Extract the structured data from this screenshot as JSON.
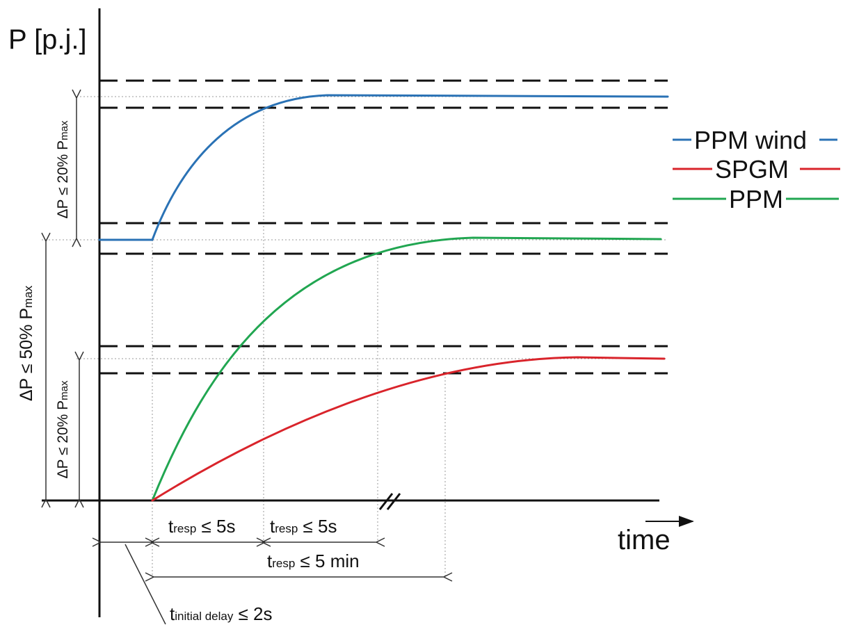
{
  "axes": {
    "y_label": "P [p.j.]",
    "x_label": "time"
  },
  "legend": [
    {
      "name": "PPM wind",
      "color": "#2a72b5"
    },
    {
      "name": "SPGM",
      "color": "#d9242b"
    },
    {
      "name": "PPM",
      "color": "#21a651"
    }
  ],
  "dimensions": {
    "wind_dp": {
      "prefix": "ΔP ≤ 20% P",
      "sub": "max"
    },
    "total_dp": {
      "prefix": "ΔP ≤ 50% P",
      "sub": "max"
    },
    "spgm_dp": {
      "prefix": "ΔP ≤ 20% P",
      "sub": "max"
    }
  },
  "time_annotations": {
    "wind_response": {
      "t": "t",
      "sub": "resp",
      "rest": " ≤ 5s"
    },
    "ppm_response": {
      "t": "t",
      "sub": "resp",
      "rest": " ≤ 5s"
    },
    "spgm_response": {
      "t": "t",
      "sub": "resp",
      "rest": " ≤ 5 min"
    },
    "initial_delay": {
      "t": "t",
      "sub": "initial delay",
      "rest": " ≤ 2s"
    }
  },
  "colors": {
    "axis": "#111111",
    "tolerance_band": "#111111",
    "guide": "#9a9a9a"
  }
}
